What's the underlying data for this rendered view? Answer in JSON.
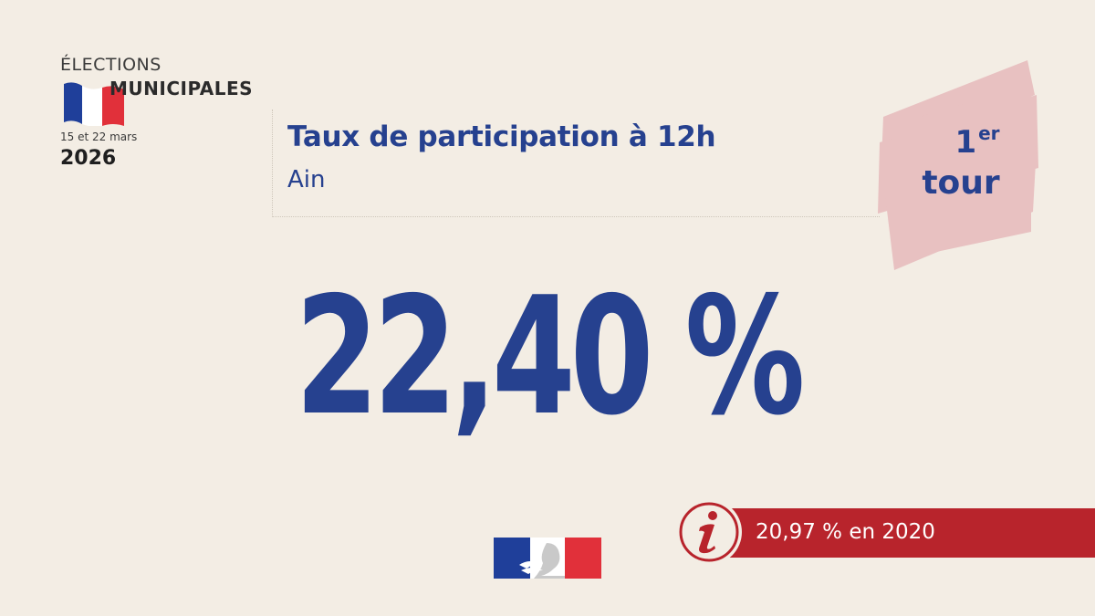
{
  "logo": {
    "line1": "ÉLECTIONS",
    "line2": "MUNICIPALES",
    "dates": "15 et 22 mars",
    "year": "2026",
    "flag_colors": [
      "#1f3f9a",
      "#ffffff",
      "#e1303a"
    ]
  },
  "header": {
    "title": "Taux de participation à 12h",
    "subtitle": "Ain"
  },
  "round_badge": {
    "number": "1",
    "superscript": "er",
    "word": "tour",
    "background_color": "#e8c1c1"
  },
  "main": {
    "value": "22,40 %"
  },
  "comparison": {
    "icon": "info-icon",
    "text": "20,97 % en 2020",
    "color": "#b8242c"
  },
  "footer": {
    "logo_icon": "marianne-logo-icon"
  },
  "colors": {
    "background": "#f3ede4",
    "primary_blue": "#26418f",
    "accent_red": "#b8242c"
  }
}
